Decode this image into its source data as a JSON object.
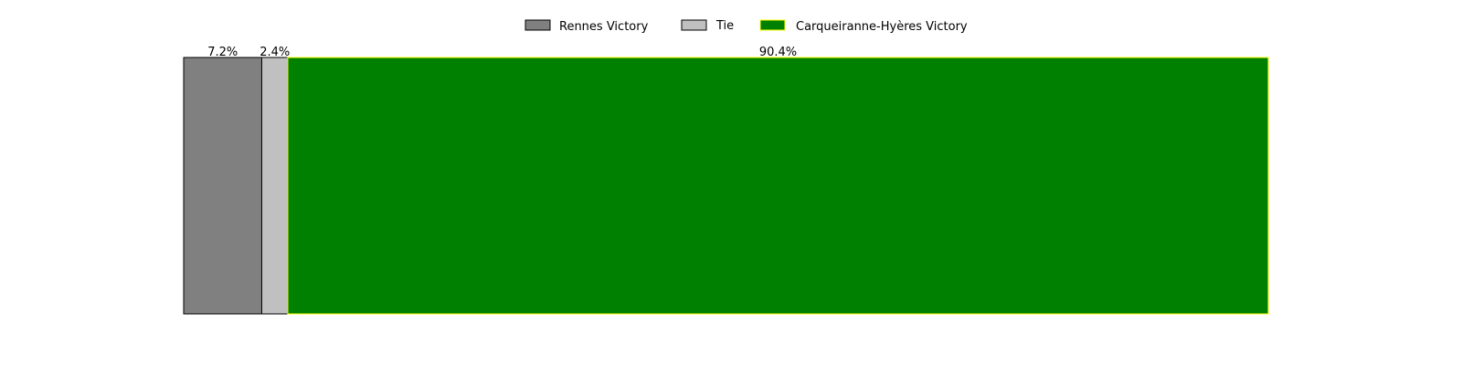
{
  "chart_data": {
    "type": "bar",
    "orientation": "horizontal-stacked",
    "title": "",
    "xlabel": "",
    "ylabel": "",
    "grid": false,
    "legend_placement": "top-center",
    "series": [
      {
        "name": "Rennes Victory",
        "value": 7.2,
        "label": "7.2%",
        "color": "#808080",
        "edge": "#000000"
      },
      {
        "name": "Tie",
        "value": 2.4,
        "label": "2.4%",
        "color": "#c0c0c0",
        "edge": "#000000"
      },
      {
        "name": "Carqueiranne-Hyères Victory",
        "value": 90.4,
        "label": "90.4%",
        "color": "#008000",
        "edge": "#ffff00"
      }
    ]
  }
}
